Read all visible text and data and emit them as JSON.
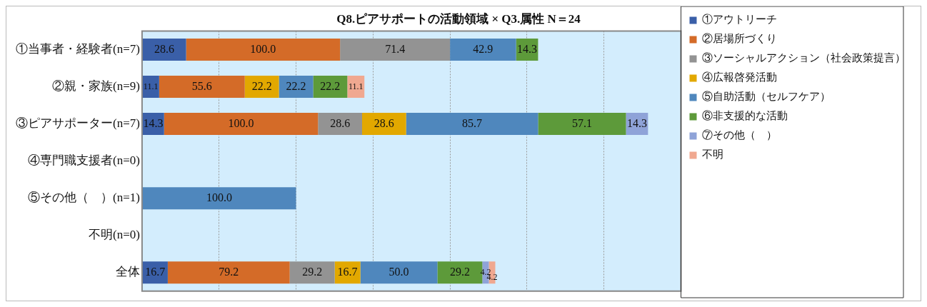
{
  "chart_data": {
    "type": "bar",
    "orientation": "horizontal",
    "stacked": true,
    "title": "Q8.ピアサポートの活動領域 × Q3.属性 N＝24",
    "categories": [
      "①当事者・経験者(n=7)",
      "②親・家族(n=9)",
      "③ピアサポーター(n=7)",
      "④専門職支援者(n=0)",
      "⑤その他（　）(n=1)",
      "不明(n=0)",
      "全体"
    ],
    "tick_labels": "y",
    "grid": "x",
    "legend": "right",
    "series": [
      {
        "name": "①アウトリーチ",
        "color": "#3a5fa8",
        "values": [
          28.6,
          11.1,
          14.3,
          null,
          null,
          null,
          16.7
        ],
        "value_labels": [
          "28.6",
          "11.1",
          "14.3",
          null,
          null,
          null,
          "16.7"
        ]
      },
      {
        "name": "②居場所づくり",
        "color": "#d46b28",
        "values": [
          100,
          55.6,
          100,
          null,
          null,
          null,
          79.2
        ],
        "value_labels": [
          "100.0",
          "55.6",
          "100.0",
          null,
          null,
          null,
          "79.2"
        ]
      },
      {
        "name": "③ソーシャルアクション（社会政策提言）",
        "color": "#939393",
        "values": [
          71.4,
          null,
          28.6,
          null,
          null,
          null,
          29.2
        ],
        "value_labels": [
          "71.4",
          null,
          "28.6",
          null,
          null,
          null,
          "29.2"
        ]
      },
      {
        "name": "④広報啓発活動",
        "color": "#e2a800",
        "values": [
          null,
          22.2,
          28.6,
          null,
          null,
          null,
          16.7
        ],
        "value_labels": [
          null,
          "22.2",
          "28.6",
          null,
          null,
          null,
          "16.7"
        ]
      },
      {
        "name": "⑤自助活動（セルフケア）",
        "color": "#4f87bd",
        "values": [
          42.9,
          22.2,
          85.7,
          null,
          100,
          null,
          50
        ],
        "value_labels": [
          "42.9",
          "22.2",
          "85.7",
          null,
          "100.0",
          null,
          "50.0"
        ]
      },
      {
        "name": "⑥非支援的な活動",
        "color": "#5d9a3a",
        "values": [
          14.3,
          22.2,
          57.1,
          null,
          null,
          null,
          29.2
        ],
        "value_labels": [
          "14.3",
          "22.2",
          "57.1",
          null,
          null,
          null,
          "29.2"
        ]
      },
      {
        "name": "⑦その他（　）",
        "color": "#8fa3d8",
        "values": [
          null,
          null,
          14.3,
          null,
          null,
          null,
          4.2
        ],
        "value_labels": [
          null,
          null,
          "14.3",
          null,
          null,
          null,
          "4.2"
        ]
      },
      {
        "name": "不明",
        "color": "#f0a890",
        "values": [
          null,
          11.1,
          null,
          null,
          null,
          null,
          4.2
        ],
        "value_labels": [
          null,
          "11.1",
          null,
          null,
          null,
          null,
          "4.2"
        ]
      }
    ]
  }
}
